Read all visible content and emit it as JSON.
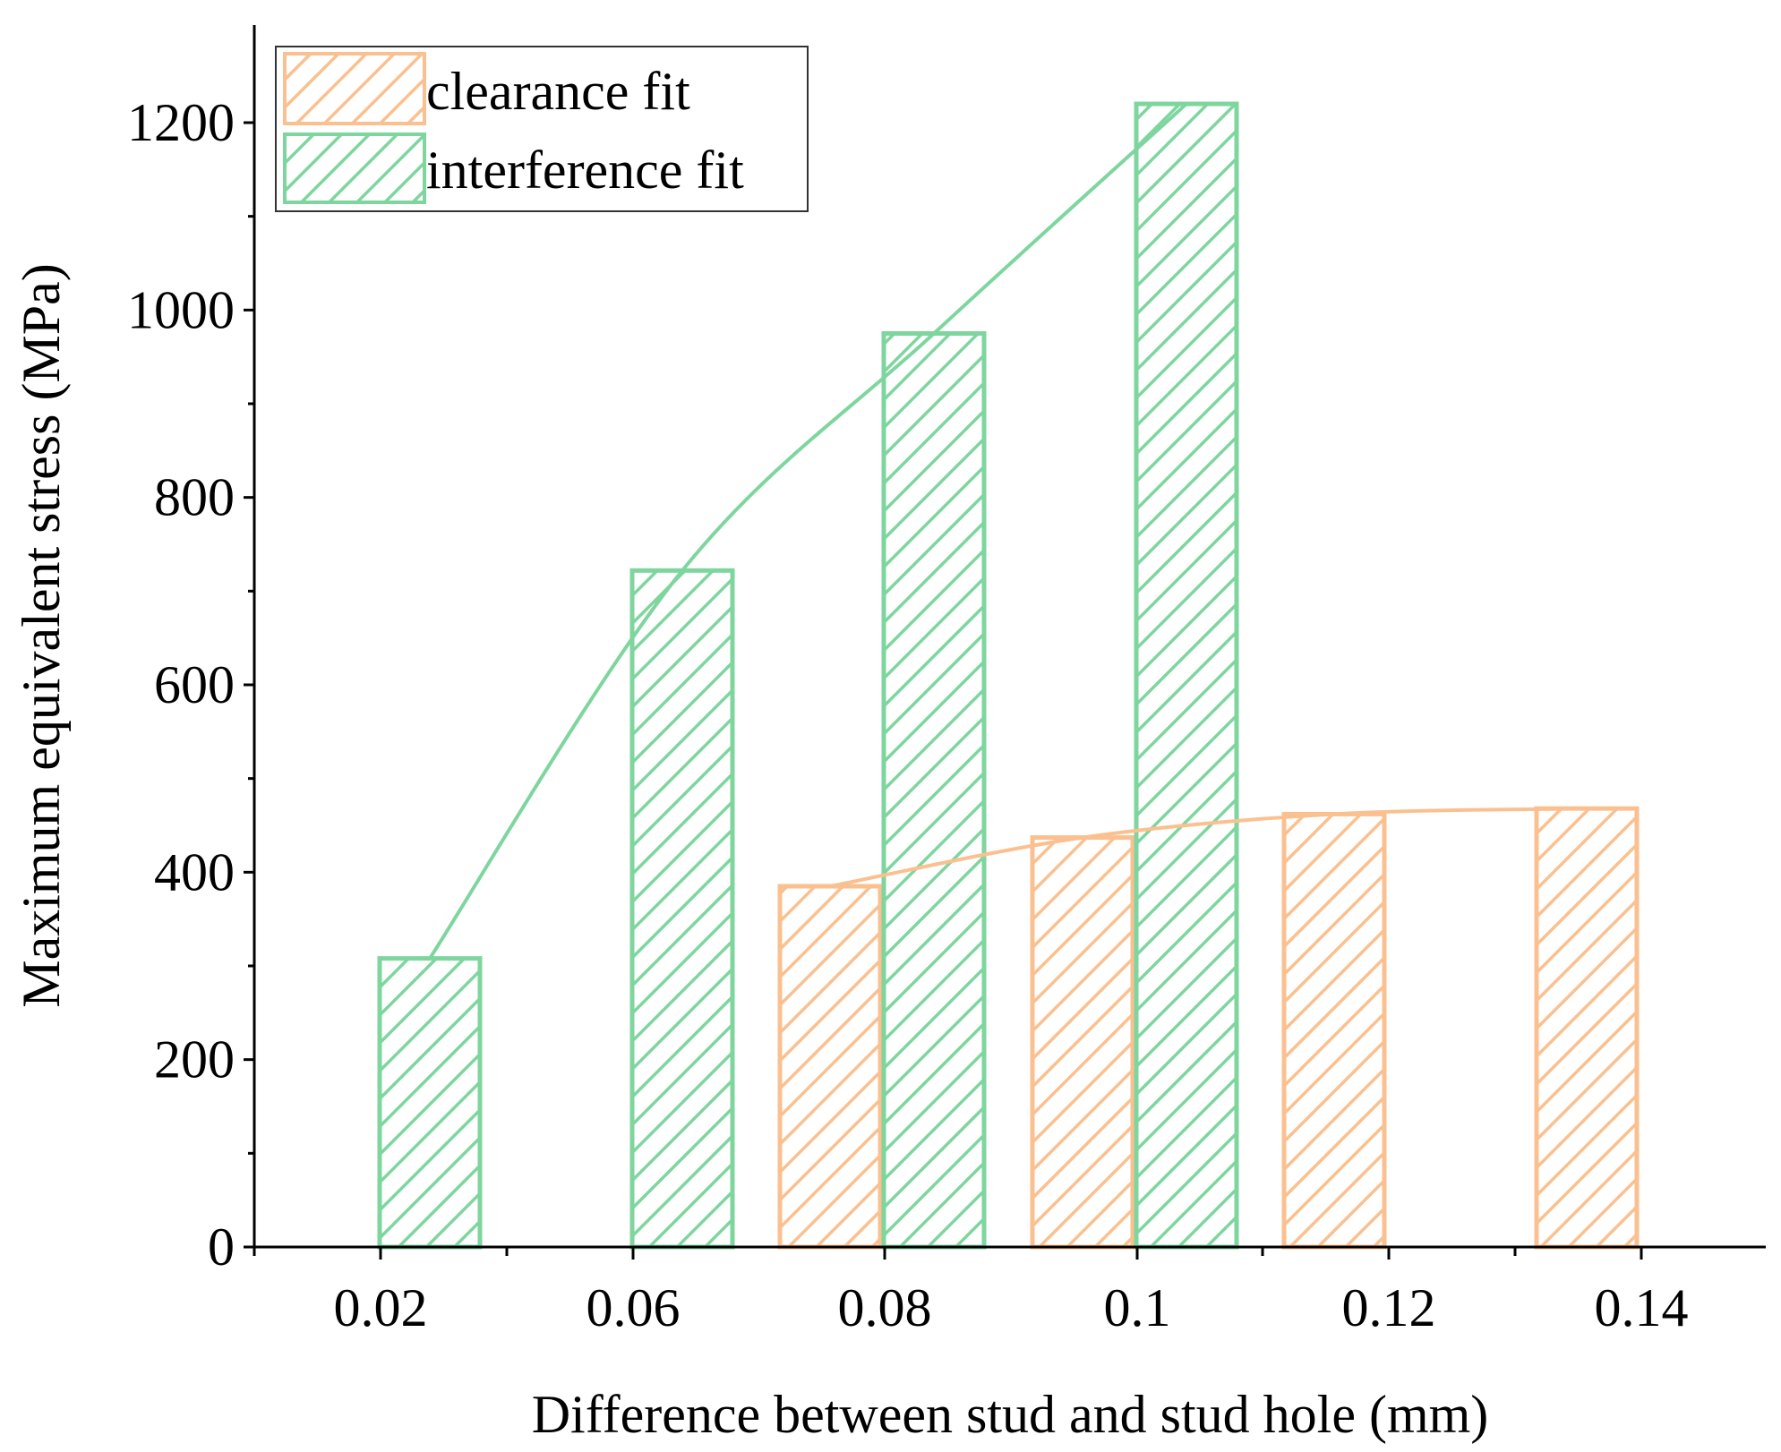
{
  "chart_data": {
    "type": "bar",
    "title": "",
    "xlabel": "Difference between stud and stud hole (mm)",
    "ylabel": "Maximum equivalent stress (MPa)",
    "categories": [
      "0.02",
      "0.06",
      "0.08",
      "0.1",
      "0.12",
      "0.14"
    ],
    "ylim": [
      0,
      1300
    ],
    "yticks": [
      "0",
      "200",
      "400",
      "600",
      "800",
      "1000",
      "1200"
    ],
    "grid": false,
    "legend_position": "top-left",
    "series": [
      {
        "name": "clearance fit",
        "color": "#fbc08f",
        "values": [
          null,
          null,
          385,
          437,
          462,
          468
        ],
        "trend_line": true
      },
      {
        "name": "interference fit",
        "color": "#7ed69e",
        "values": [
          308,
          722,
          975,
          1220,
          null,
          null
        ],
        "trend_line": true
      }
    ]
  }
}
